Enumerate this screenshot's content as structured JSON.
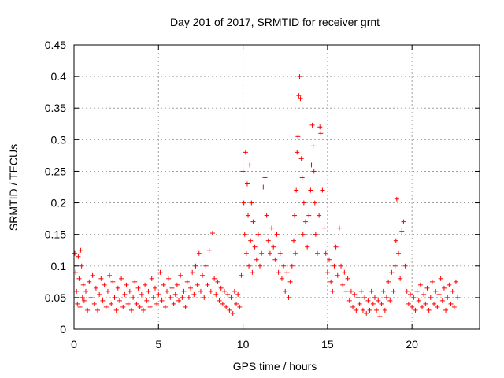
{
  "chart_data": {
    "type": "scatter",
    "title": "Day 201 of 2017, SRMTID for receiver grnt",
    "xlabel": "GPS time / hours",
    "ylabel": "SRMTID / TECUs",
    "xlim": [
      0,
      24
    ],
    "ylim": [
      0,
      0.45
    ],
    "xticks": [
      0,
      5,
      10,
      15,
      20
    ],
    "xtick_labels": [
      "0",
      "5",
      "10",
      "15",
      "20"
    ],
    "yticks": [
      0,
      0.05,
      0.1,
      0.15,
      0.2,
      0.25,
      0.3,
      0.35,
      0.4,
      0.45
    ],
    "ytick_labels": [
      "0",
      "0.05",
      "0.1",
      "0.15",
      "0.2",
      "0.25",
      "0.3",
      "0.35",
      "0.4",
      "0.45"
    ],
    "grid": true,
    "marker": "+",
    "color": "#ff0000",
    "series": [
      {
        "name": "SRMTID",
        "points": [
          [
            0.05,
            0.12
          ],
          [
            0.1,
            0.09
          ],
          [
            0.15,
            0.06
          ],
          [
            0.2,
            0.04
          ],
          [
            0.25,
            0.115
          ],
          [
            0.3,
            0.08
          ],
          [
            0.35,
            0.035
          ],
          [
            0.4,
            0.125
          ],
          [
            0.45,
            0.1
          ],
          [
            0.5,
            0.05
          ],
          [
            0.55,
            0.07
          ],
          [
            0.6,
            0.045
          ],
          [
            0.7,
            0.06
          ],
          [
            0.8,
            0.03
          ],
          [
            0.9,
            0.075
          ],
          [
            1.0,
            0.05
          ],
          [
            1.1,
            0.085
          ],
          [
            1.2,
            0.04
          ],
          [
            1.3,
            0.065
          ],
          [
            1.4,
            0.03
          ],
          [
            1.5,
            0.055
          ],
          [
            1.6,
            0.08
          ],
          [
            1.7,
            0.045
          ],
          [
            1.8,
            0.07
          ],
          [
            1.9,
            0.035
          ],
          [
            2.0,
            0.06
          ],
          [
            2.1,
            0.085
          ],
          [
            2.2,
            0.04
          ],
          [
            2.3,
            0.075
          ],
          [
            2.4,
            0.05
          ],
          [
            2.5,
            0.03
          ],
          [
            2.6,
            0.065
          ],
          [
            2.7,
            0.045
          ],
          [
            2.8,
            0.08
          ],
          [
            2.9,
            0.035
          ],
          [
            3.0,
            0.055
          ],
          [
            3.1,
            0.07
          ],
          [
            3.2,
            0.04
          ],
          [
            3.3,
            0.06
          ],
          [
            3.4,
            0.03
          ],
          [
            3.5,
            0.05
          ],
          [
            3.6,
            0.075
          ],
          [
            3.7,
            0.04
          ],
          [
            3.8,
            0.065
          ],
          [
            3.9,
            0.035
          ],
          [
            4.0,
            0.055
          ],
          [
            4.1,
            0.03
          ],
          [
            4.2,
            0.07
          ],
          [
            4.3,
            0.045
          ],
          [
            4.4,
            0.06
          ],
          [
            4.5,
            0.035
          ],
          [
            4.6,
            0.08
          ],
          [
            4.7,
            0.05
          ],
          [
            4.8,
            0.065
          ],
          [
            4.9,
            0.04
          ],
          [
            5.0,
            0.055
          ],
          [
            5.1,
            0.09
          ],
          [
            5.2,
            0.045
          ],
          [
            5.3,
            0.07
          ],
          [
            5.4,
            0.035
          ],
          [
            5.5,
            0.06
          ],
          [
            5.6,
            0.08
          ],
          [
            5.7,
            0.05
          ],
          [
            5.8,
            0.065
          ],
          [
            5.9,
            0.04
          ],
          [
            6.0,
            0.055
          ],
          [
            6.1,
            0.07
          ],
          [
            6.2,
            0.045
          ],
          [
            6.3,
            0.085
          ],
          [
            6.4,
            0.05
          ],
          [
            6.5,
            0.06
          ],
          [
            6.6,
            0.035
          ],
          [
            6.7,
            0.075
          ],
          [
            6.8,
            0.05
          ],
          [
            6.9,
            0.065
          ],
          [
            7.0,
            0.09
          ],
          [
            7.1,
            0.055
          ],
          [
            7.2,
            0.1
          ],
          [
            7.3,
            0.07
          ],
          [
            7.4,
            0.12
          ],
          [
            7.5,
            0.06
          ],
          [
            7.6,
            0.085
          ],
          [
            7.7,
            0.05
          ],
          [
            7.8,
            0.1
          ],
          [
            7.9,
            0.07
          ],
          [
            8.0,
            0.125
          ],
          [
            8.1,
            0.06
          ],
          [
            8.2,
            0.152
          ],
          [
            8.3,
            0.08
          ],
          [
            8.4,
            0.055
          ],
          [
            8.5,
            0.075
          ],
          [
            8.6,
            0.045
          ],
          [
            8.7,
            0.065
          ],
          [
            8.8,
            0.04
          ],
          [
            8.9,
            0.06
          ],
          [
            9.0,
            0.035
          ],
          [
            9.1,
            0.055
          ],
          [
            9.2,
            0.03
          ],
          [
            9.3,
            0.05
          ],
          [
            9.4,
            0.025
          ],
          [
            9.5,
            0.06
          ],
          [
            9.6,
            0.04
          ],
          [
            9.7,
            0.055
          ],
          [
            9.8,
            0.035
          ],
          [
            9.9,
            0.085
          ],
          [
            10.0,
            0.25
          ],
          [
            10.05,
            0.2
          ],
          [
            10.1,
            0.15
          ],
          [
            10.15,
            0.28
          ],
          [
            10.2,
            0.12
          ],
          [
            10.25,
            0.23
          ],
          [
            10.3,
            0.18
          ],
          [
            10.35,
            0.1
          ],
          [
            10.4,
            0.26
          ],
          [
            10.45,
            0.14
          ],
          [
            10.5,
            0.2
          ],
          [
            10.55,
            0.09
          ],
          [
            10.6,
            0.17
          ],
          [
            10.7,
            0.13
          ],
          [
            10.8,
            0.11
          ],
          [
            10.9,
            0.15
          ],
          [
            11.0,
            0.1
          ],
          [
            11.1,
            0.12
          ],
          [
            11.2,
            0.225
          ],
          [
            11.3,
            0.24
          ],
          [
            11.4,
            0.18
          ],
          [
            11.5,
            0.14
          ],
          [
            11.6,
            0.12
          ],
          [
            11.7,
            0.16
          ],
          [
            11.8,
            0.13
          ],
          [
            11.9,
            0.11
          ],
          [
            12.0,
            0.15
          ],
          [
            12.1,
            0.09
          ],
          [
            12.2,
            0.12
          ],
          [
            12.3,
            0.08
          ],
          [
            12.4,
            0.1
          ],
          [
            12.5,
            0.06
          ],
          [
            12.6,
            0.09
          ],
          [
            12.7,
            0.05
          ],
          [
            12.8,
            0.075
          ],
          [
            12.9,
            0.1
          ],
          [
            13.0,
            0.14
          ],
          [
            13.05,
            0.18
          ],
          [
            13.1,
            0.12
          ],
          [
            13.15,
            0.22
          ],
          [
            13.2,
            0.28
          ],
          [
            13.25,
            0.305
          ],
          [
            13.3,
            0.37
          ],
          [
            13.35,
            0.4
          ],
          [
            13.4,
            0.365
          ],
          [
            13.45,
            0.27
          ],
          [
            13.5,
            0.24
          ],
          [
            13.55,
            0.15
          ],
          [
            13.6,
            0.2
          ],
          [
            13.7,
            0.17
          ],
          [
            13.8,
            0.13
          ],
          [
            13.9,
            0.18
          ],
          [
            14.0,
            0.22
          ],
          [
            14.05,
            0.26
          ],
          [
            14.1,
            0.323
          ],
          [
            14.15,
            0.29
          ],
          [
            14.2,
            0.25
          ],
          [
            14.25,
            0.2
          ],
          [
            14.3,
            0.15
          ],
          [
            14.4,
            0.12
          ],
          [
            14.5,
            0.18
          ],
          [
            14.55,
            0.32
          ],
          [
            14.6,
            0.31
          ],
          [
            14.7,
            0.22
          ],
          [
            14.8,
            0.16
          ],
          [
            14.9,
            0.12
          ],
          [
            15.0,
            0.09
          ],
          [
            15.1,
            0.11
          ],
          [
            15.2,
            0.075
          ],
          [
            15.3,
            0.06
          ],
          [
            15.4,
            0.1
          ],
          [
            15.5,
            0.13
          ],
          [
            15.6,
            0.085
          ],
          [
            15.7,
            0.16
          ],
          [
            15.8,
            0.1
          ],
          [
            15.9,
            0.07
          ],
          [
            16.0,
            0.09
          ],
          [
            16.1,
            0.06
          ],
          [
            16.2,
            0.08
          ],
          [
            16.3,
            0.045
          ],
          [
            16.4,
            0.06
          ],
          [
            16.5,
            0.035
          ],
          [
            16.6,
            0.055
          ],
          [
            16.7,
            0.03
          ],
          [
            16.8,
            0.05
          ],
          [
            16.9,
            0.04
          ],
          [
            17.0,
            0.06
          ],
          [
            17.1,
            0.03
          ],
          [
            17.2,
            0.05
          ],
          [
            17.3,
            0.025
          ],
          [
            17.4,
            0.045
          ],
          [
            17.5,
            0.03
          ],
          [
            17.6,
            0.06
          ],
          [
            17.7,
            0.04
          ],
          [
            17.8,
            0.05
          ],
          [
            17.9,
            0.03
          ],
          [
            18.0,
            0.045
          ],
          [
            18.1,
            0.02
          ],
          [
            18.2,
            0.04
          ],
          [
            18.3,
            0.06
          ],
          [
            18.4,
            0.03
          ],
          [
            18.5,
            0.05
          ],
          [
            18.6,
            0.075
          ],
          [
            18.7,
            0.045
          ],
          [
            18.8,
            0.09
          ],
          [
            18.9,
            0.06
          ],
          [
            19.0,
            0.1
          ],
          [
            19.05,
            0.14
          ],
          [
            19.1,
            0.206
          ],
          [
            19.2,
            0.12
          ],
          [
            19.3,
            0.08
          ],
          [
            19.4,
            0.155
          ],
          [
            19.5,
            0.17
          ],
          [
            19.6,
            0.1
          ],
          [
            19.7,
            0.06
          ],
          [
            19.8,
            0.04
          ],
          [
            19.9,
            0.055
          ],
          [
            20.0,
            0.035
          ],
          [
            20.1,
            0.05
          ],
          [
            20.2,
            0.03
          ],
          [
            20.3,
            0.06
          ],
          [
            20.4,
            0.045
          ],
          [
            20.5,
            0.07
          ],
          [
            20.6,
            0.035
          ],
          [
            20.7,
            0.055
          ],
          [
            20.8,
            0.04
          ],
          [
            20.9,
            0.065
          ],
          [
            21.0,
            0.03
          ],
          [
            21.1,
            0.05
          ],
          [
            21.2,
            0.075
          ],
          [
            21.3,
            0.04
          ],
          [
            21.4,
            0.06
          ],
          [
            21.5,
            0.035
          ],
          [
            21.6,
            0.055
          ],
          [
            21.7,
            0.08
          ],
          [
            21.8,
            0.045
          ],
          [
            21.9,
            0.065
          ],
          [
            22.0,
            0.03
          ],
          [
            22.1,
            0.05
          ],
          [
            22.2,
            0.07
          ],
          [
            22.3,
            0.04
          ],
          [
            22.4,
            0.06
          ],
          [
            22.5,
            0.035
          ],
          [
            22.6,
            0.075
          ],
          [
            22.7,
            0.05
          ]
        ]
      }
    ]
  }
}
